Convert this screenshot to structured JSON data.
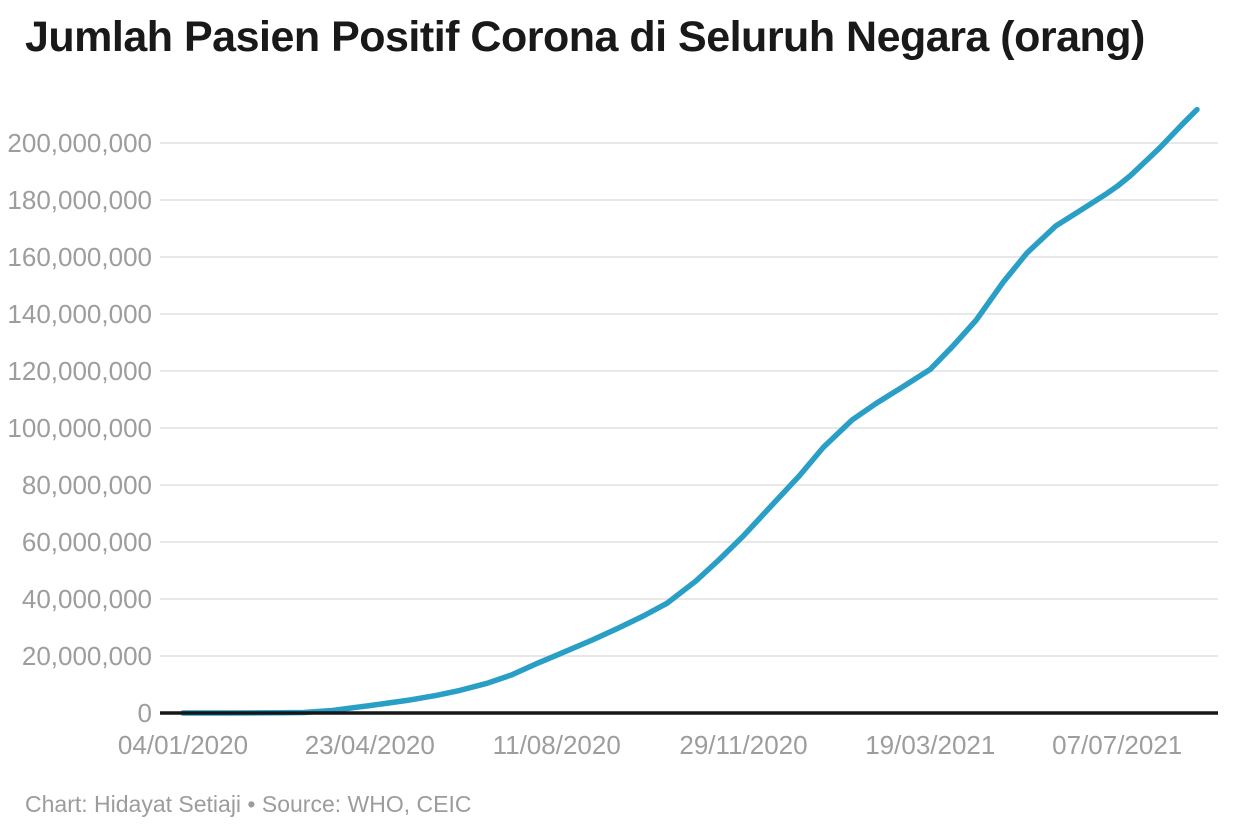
{
  "header": {
    "title": "Jumlah Pasien Positif Corona di Seluruh Negara (orang)"
  },
  "footer": {
    "attribution": "Chart: Hidayat Setiaji • Source: WHO, CEIC"
  },
  "chart_data": {
    "type": "line",
    "title": "Jumlah Pasien Positif Corona di Seluruh Negara (orang)",
    "xlabel": "",
    "ylabel": "",
    "x_tick_labels": [
      "04/01/2020",
      "23/04/2020",
      "11/08/2020",
      "29/11/2020",
      "19/03/2021",
      "07/07/2021"
    ],
    "y_tick_values": [
      0,
      20000000,
      40000000,
      60000000,
      80000000,
      100000000,
      120000000,
      140000000,
      160000000,
      180000000,
      200000000
    ],
    "y_tick_labels": [
      "0",
      "20,000,000",
      "40,000,000",
      "60,000,000",
      "80,000,000",
      "100,000,000",
      "120,000,000",
      "140,000,000",
      "160,000,000",
      "180,000,000",
      "200,000,000"
    ],
    "ylim": [
      0,
      215000000
    ],
    "grid": "horizontal",
    "legend": "none",
    "series": [
      {
        "points": [
          [
            "04/01/2020",
            300
          ],
          [
            "01/02/2020",
            12000
          ],
          [
            "01/03/2020",
            87000
          ],
          [
            "15/03/2020",
            160000
          ],
          [
            "01/04/2020",
            860000
          ],
          [
            "15/04/2020",
            1990000
          ],
          [
            "23/04/2020",
            2600000
          ],
          [
            "15/05/2020",
            4430000
          ],
          [
            "01/06/2020",
            6190000
          ],
          [
            "15/06/2020",
            7940000
          ],
          [
            "01/07/2020",
            10430000
          ],
          [
            "15/07/2020",
            13250000
          ],
          [
            "01/08/2020",
            17800000
          ],
          [
            "11/08/2020",
            20290000
          ],
          [
            "01/09/2020",
            25600000
          ],
          [
            "15/09/2020",
            29440000
          ],
          [
            "01/10/2020",
            34040000
          ],
          [
            "15/10/2020",
            38530000
          ],
          [
            "01/11/2020",
            46330000
          ],
          [
            "15/11/2020",
            54010000
          ],
          [
            "29/11/2020",
            62190000
          ],
          [
            "15/12/2020",
            72460000
          ],
          [
            "01/01/2021",
            83330000
          ],
          [
            "15/01/2021",
            93200000
          ],
          [
            "01/02/2021",
            102830000
          ],
          [
            "15/02/2021",
            108610000
          ],
          [
            "01/03/2021",
            113800000
          ],
          [
            "19/03/2021",
            120600000
          ],
          [
            "01/04/2021",
            128560000
          ],
          [
            "15/04/2021",
            137870000
          ],
          [
            "01/05/2021",
            151250000
          ],
          [
            "15/05/2021",
            161510000
          ],
          [
            "01/06/2021",
            170930000
          ],
          [
            "15/06/2021",
            176210000
          ],
          [
            "01/07/2021",
            182320000
          ],
          [
            "07/07/2021",
            184820000
          ],
          [
            "15/07/2021",
            188660000
          ],
          [
            "01/08/2021",
            198230000
          ],
          [
            "15/08/2021",
            206960000
          ],
          [
            "23/08/2021",
            211730000
          ]
        ]
      }
    ],
    "colors": {
      "line": "#2a9fc6",
      "grid": "#e8e8e8",
      "axis": "#161616",
      "tick_text": "#9d9d9d",
      "title_text": "#191919",
      "attribution_text": "#9c9c9c",
      "background": "#ffffff"
    }
  }
}
